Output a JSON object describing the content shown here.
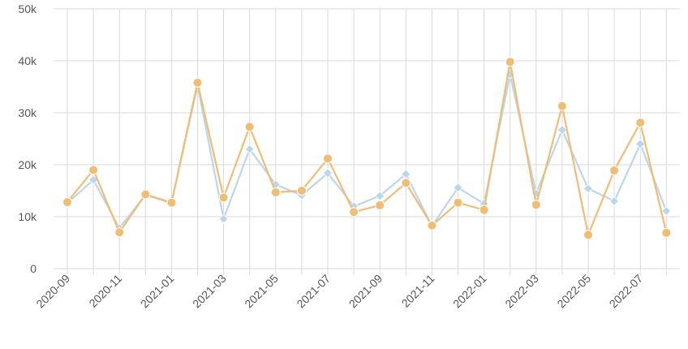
{
  "chart_data": {
    "type": "line",
    "x": [
      "2020-09",
      "2020-10",
      "2020-11",
      "2020-12",
      "2021-01",
      "2021-02",
      "2021-03",
      "2021-04",
      "2021-05",
      "2021-06",
      "2021-07",
      "2021-08",
      "2021-09",
      "2021-10",
      "2021-11",
      "2021-12",
      "2022-01",
      "2022-02",
      "2022-03",
      "2022-04",
      "2022-05",
      "2022-06",
      "2022-07",
      "2022-08"
    ],
    "x_tick_labels": [
      "2020-09",
      "2020-11",
      "2021-01",
      "2021-03",
      "2021-05",
      "2021-07",
      "2021-09",
      "2021-11",
      "2022-01",
      "2022-03",
      "2022-05",
      "2022-07"
    ],
    "y_tick_labels": [
      "0",
      "10k",
      "20k",
      "30k",
      "40k",
      "50k"
    ],
    "ylim": [
      0,
      50000
    ],
    "grid": true,
    "series": [
      {
        "marker": "circle",
        "color": "#f0bd74",
        "values": [
          12800,
          19000,
          7000,
          14300,
          12700,
          35800,
          13700,
          27300,
          14700,
          15000,
          21200,
          10900,
          12200,
          16500,
          8300,
          12700,
          11300,
          39800,
          12300,
          31300,
          6500,
          18900,
          28100,
          6900
        ]
      },
      {
        "marker": "diamond",
        "color": "#bcd6ee",
        "values": [
          12600,
          17100,
          7800,
          14200,
          12600,
          35300,
          9600,
          23000,
          16200,
          14100,
          18400,
          12000,
          14000,
          18200,
          8200,
          15600,
          12500,
          37400,
          14500,
          26700,
          15400,
          13000,
          24000,
          11100
        ]
      }
    ]
  }
}
